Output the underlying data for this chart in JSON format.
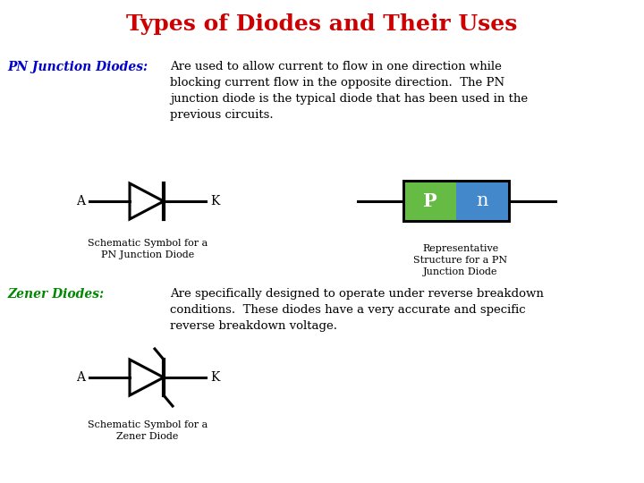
{
  "title": "Types of Diodes and Their Uses",
  "title_color": "#cc0000",
  "title_fontsize": 18,
  "background_color": "#ffffff",
  "pn_label": "PN Junction Diodes:",
  "pn_label_color": "#0000cc",
  "pn_label_fontsize": 10,
  "pn_text": "Are used to allow current to flow in one direction while\nblocking current flow in the opposite direction.  The PN\njunction diode is the typical diode that has been used in the\nprevious circuits.",
  "pn_text_color": "#000000",
  "pn_text_fontsize": 9.5,
  "zener_label": "Zener Diodes:",
  "zener_label_color": "#008800",
  "zener_label_fontsize": 10,
  "zener_text": "Are specifically designed to operate under reverse breakdown\nconditions.  These diodes have a very accurate and specific\nreverse breakdown voltage.",
  "zener_text_color": "#000000",
  "zener_text_fontsize": 9.5,
  "schematic_pn_caption": "Schematic Symbol for a\nPN Junction Diode",
  "schematic_zener_caption": "Schematic Symbol for a\nZener Diode",
  "repr_caption": "Representative\nStructure for a PN\nJunction Diode",
  "caption_fontsize": 8,
  "P_color": "#66bb44",
  "n_color": "#4488cc",
  "box_border_color": "#000000",
  "P_text_color": "#ffffff",
  "n_text_color": "#ffffff",
  "line_color": "#000000",
  "diode_color": "#000000",
  "label_fontsize": 10
}
